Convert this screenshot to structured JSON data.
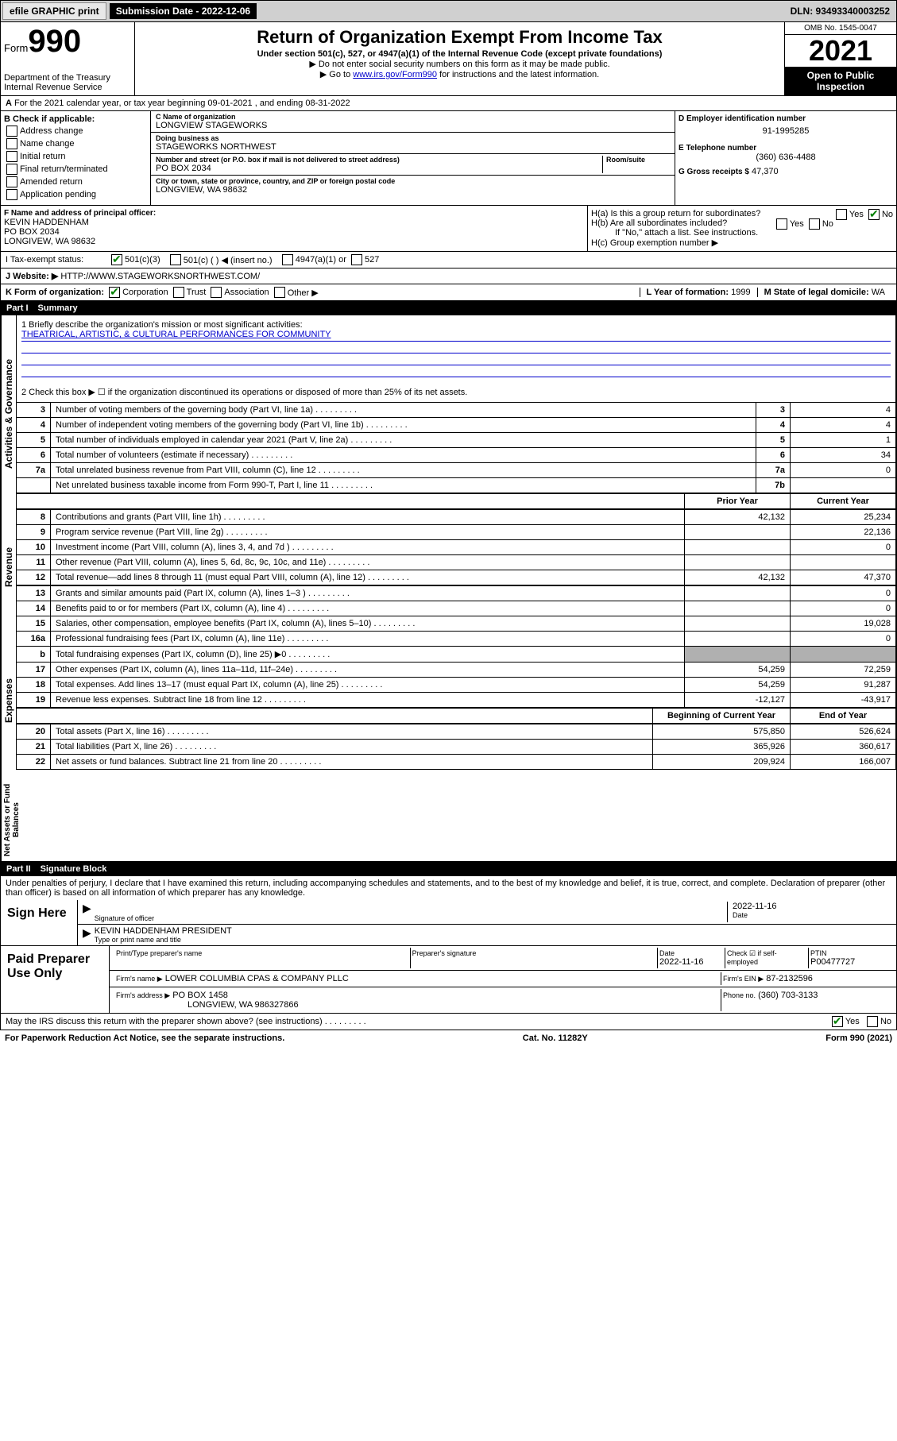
{
  "topbar": {
    "efile": "efile GRAPHIC print",
    "sub_date_label": "Submission Date - 2022-12-06",
    "dln": "DLN: 93493340003252"
  },
  "header": {
    "form_label": "Form",
    "form_number": "990",
    "dept": "Department of the Treasury\nInternal Revenue Service",
    "title": "Return of Organization Exempt From Income Tax",
    "subtitle": "Under section 501(c), 527, or 4947(a)(1) of the Internal Revenue Code (except private foundations)",
    "note1": "▶ Do not enter social security numbers on this form as it may be made public.",
    "note2_prefix": "▶ Go to ",
    "note2_link": "www.irs.gov/Form990",
    "note2_suffix": " for instructions and the latest information.",
    "omb": "OMB No. 1545-0047",
    "year": "2021",
    "open": "Open to Public Inspection"
  },
  "line_a": "For the 2021 calendar year, or tax year beginning 09-01-2021  , and ending 08-31-2022",
  "section_b": {
    "header": "B Check if applicable:",
    "opts": [
      "Address change",
      "Name change",
      "Initial return",
      "Final return/terminated",
      "Amended return",
      "Application pending"
    ]
  },
  "section_c": {
    "name_label": "C Name of organization",
    "name": "LONGVIEW STAGEWORKS",
    "dba_label": "Doing business as",
    "dba": "STAGEWORKS NORTHWEST",
    "addr_label": "Number and street (or P.O. box if mail is not delivered to street address)",
    "room_label": "Room/suite",
    "addr": "PO BOX 2034",
    "city_label": "City or town, state or province, country, and ZIP or foreign postal code",
    "city": "LONGVIEW, WA  98632"
  },
  "section_d": {
    "ein_label": "D Employer identification number",
    "ein": "91-1995285",
    "phone_label": "E Telephone number",
    "phone": "(360) 636-4488",
    "gross_label": "G Gross receipts $",
    "gross": "47,370"
  },
  "section_f": {
    "label": "F Name and address of principal officer:",
    "name": "KEVIN HADDENHAM",
    "addr1": "PO BOX 2034",
    "addr2": "LONGIVEW, WA  98632"
  },
  "section_h": {
    "ha": "H(a)  Is this a group return for subordinates?",
    "hb": "H(b)  Are all subordinates included?",
    "hb_note": "If \"No,\" attach a list. See instructions.",
    "hc": "H(c)  Group exemption number ▶",
    "yes": "Yes",
    "no": "No"
  },
  "section_i": {
    "label": "I  Tax-exempt status:",
    "opt1": "501(c)(3)",
    "opt2": "501(c) (  ) ◀ (insert no.)",
    "opt3": "4947(a)(1) or",
    "opt4": "527"
  },
  "section_j": {
    "label": "J  Website: ▶",
    "value": "HTTP://WWW.STAGEWORKSNORTHWEST.COM/"
  },
  "section_k": {
    "label": "K Form of organization:",
    "opts": [
      "Corporation",
      "Trust",
      "Association",
      "Other ▶"
    ]
  },
  "section_l": {
    "label": "L Year of formation:",
    "value": "1999"
  },
  "section_m": {
    "label": "M State of legal domicile:",
    "value": "WA"
  },
  "part1": {
    "label": "Part I",
    "title": "Summary",
    "side_ag": "Activities & Governance",
    "side_rev": "Revenue",
    "side_exp": "Expenses",
    "side_na": "Net Assets or Fund Balances",
    "line1_label": "1  Briefly describe the organization's mission or most significant activities:",
    "line1_text": "THEATRICAL, ARTISTIC, & CULTURAL PERFORMANCES FOR COMMUNITY",
    "line2": "2  Check this box ▶ ☐ if the organization discontinued its operations or disposed of more than 25% of its net assets.",
    "rows_ag": [
      {
        "n": "3",
        "t": "Number of voting members of the governing body (Part VI, line 1a)",
        "b": "3",
        "v": "4"
      },
      {
        "n": "4",
        "t": "Number of independent voting members of the governing body (Part VI, line 1b)",
        "b": "4",
        "v": "4"
      },
      {
        "n": "5",
        "t": "Total number of individuals employed in calendar year 2021 (Part V, line 2a)",
        "b": "5",
        "v": "1"
      },
      {
        "n": "6",
        "t": "Total number of volunteers (estimate if necessary)",
        "b": "6",
        "v": "34"
      },
      {
        "n": "7a",
        "t": "Total unrelated business revenue from Part VIII, column (C), line 12",
        "b": "7a",
        "v": "0"
      },
      {
        "n": "",
        "t": "Net unrelated business taxable income from Form 990-T, Part I, line 11",
        "b": "7b",
        "v": ""
      }
    ],
    "col_prior": "Prior Year",
    "col_current": "Current Year",
    "rows_rev": [
      {
        "n": "8",
        "t": "Contributions and grants (Part VIII, line 1h)",
        "p": "42,132",
        "c": "25,234"
      },
      {
        "n": "9",
        "t": "Program service revenue (Part VIII, line 2g)",
        "p": "",
        "c": "22,136"
      },
      {
        "n": "10",
        "t": "Investment income (Part VIII, column (A), lines 3, 4, and 7d )",
        "p": "",
        "c": "0"
      },
      {
        "n": "11",
        "t": "Other revenue (Part VIII, column (A), lines 5, 6d, 8c, 9c, 10c, and 11e)",
        "p": "",
        "c": ""
      },
      {
        "n": "12",
        "t": "Total revenue—add lines 8 through 11 (must equal Part VIII, column (A), line 12)",
        "p": "42,132",
        "c": "47,370"
      }
    ],
    "rows_exp": [
      {
        "n": "13",
        "t": "Grants and similar amounts paid (Part IX, column (A), lines 1–3 )",
        "p": "",
        "c": "0"
      },
      {
        "n": "14",
        "t": "Benefits paid to or for members (Part IX, column (A), line 4)",
        "p": "",
        "c": "0"
      },
      {
        "n": "15",
        "t": "Salaries, other compensation, employee benefits (Part IX, column (A), lines 5–10)",
        "p": "",
        "c": "19,028"
      },
      {
        "n": "16a",
        "t": "Professional fundraising fees (Part IX, column (A), line 11e)",
        "p": "",
        "c": "0"
      },
      {
        "n": "b",
        "t": "Total fundraising expenses (Part IX, column (D), line 25) ▶0",
        "p": "grey",
        "c": "grey"
      },
      {
        "n": "17",
        "t": "Other expenses (Part IX, column (A), lines 11a–11d, 11f–24e)",
        "p": "54,259",
        "c": "72,259"
      },
      {
        "n": "18",
        "t": "Total expenses. Add lines 13–17 (must equal Part IX, column (A), line 25)",
        "p": "54,259",
        "c": "91,287"
      },
      {
        "n": "19",
        "t": "Revenue less expenses. Subtract line 18 from line 12",
        "p": "-12,127",
        "c": "-43,917"
      }
    ],
    "col_boy": "Beginning of Current Year",
    "col_eoy": "End of Year",
    "rows_na": [
      {
        "n": "20",
        "t": "Total assets (Part X, line 16)",
        "p": "575,850",
        "c": "526,624"
      },
      {
        "n": "21",
        "t": "Total liabilities (Part X, line 26)",
        "p": "365,926",
        "c": "360,617"
      },
      {
        "n": "22",
        "t": "Net assets or fund balances. Subtract line 21 from line 20",
        "p": "209,924",
        "c": "166,007"
      }
    ]
  },
  "part2": {
    "label": "Part II",
    "title": "Signature Block",
    "declaration": "Under penalties of perjury, I declare that I have examined this return, including accompanying schedules and statements, and to the best of my knowledge and belief, it is true, correct, and complete. Declaration of preparer (other than officer) is based on all information of which preparer has any knowledge.",
    "sign_here": "Sign Here",
    "sig_officer": "Signature of officer",
    "sig_date": "2022-11-16",
    "date_label": "Date",
    "officer_name": "KEVIN HADDENHAM PRESIDENT",
    "type_name": "Type or print name and title",
    "paid_label": "Paid Preparer Use Only",
    "prep_name_label": "Print/Type preparer's name",
    "prep_sig_label": "Preparer's signature",
    "prep_date": "2022-11-16",
    "check_self": "Check ☑ if self-employed",
    "ptin_label": "PTIN",
    "ptin": "P00477727",
    "firm_name_label": "Firm's name    ▶",
    "firm_name": "LOWER COLUMBIA CPAS & COMPANY PLLC",
    "firm_ein_label": "Firm's EIN ▶",
    "firm_ein": "87-2132596",
    "firm_addr_label": "Firm's address ▶",
    "firm_addr1": "PO BOX 1458",
    "firm_addr2": "LONGVIEW, WA  986327866",
    "firm_phone_label": "Phone no.",
    "firm_phone": "(360) 703-3133",
    "may_irs": "May the IRS discuss this return with the preparer shown above? (see instructions)"
  },
  "footer": {
    "left": "For Paperwork Reduction Act Notice, see the separate instructions.",
    "mid": "Cat. No. 11282Y",
    "right": "Form 990 (2021)"
  }
}
